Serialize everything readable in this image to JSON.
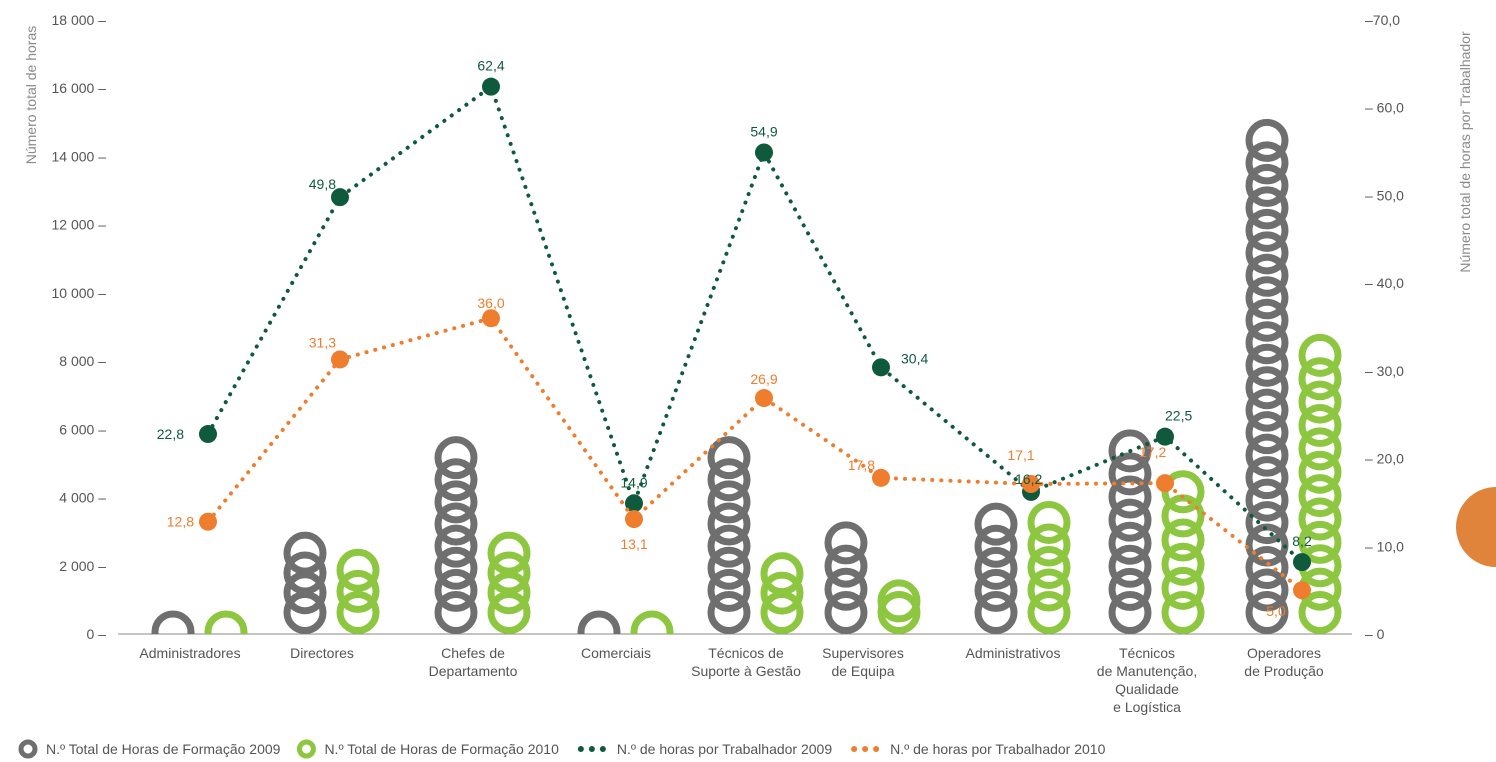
{
  "chart_data": {
    "type": "bar",
    "categories": [
      [
        "Administradores"
      ],
      [
        "Directores"
      ],
      [
        "Chefes de",
        "Departamento"
      ],
      [
        "Comerciais"
      ],
      [
        "Técnicos de",
        "Suporte à Gestão"
      ],
      [
        "Supervisores",
        "de Equipa"
      ],
      [
        "Administrativos"
      ],
      [
        "Técnicos",
        "de Manutenção,",
        "Qualidade",
        "e Logística"
      ],
      [
        "Operadores",
        "de Produção"
      ]
    ],
    "ylabel": "Número total de horas",
    "y2label": "Número total de horas por Trabalhador",
    "ylim": [
      0,
      18000
    ],
    "y2lim": [
      0,
      70
    ],
    "yticks": [
      "0 –",
      "2 000 –",
      "4 000 –",
      "6 000 –",
      "8 000 –",
      "10 000 –",
      "12 000 –",
      "14 000 –",
      "16 000 –",
      "18 000 –"
    ],
    "y2ticks": [
      "– 0",
      "– 10,0",
      "– 20,0",
      "– 30,0",
      "– 40,0",
      "– 50,0",
      "– 60,0",
      "–70,0"
    ],
    "series": [
      {
        "name": "N.º Total de Horas de Formação 2009",
        "kind": "bar",
        "color": "#6f6f6f",
        "values": [
          100,
          3000,
          5800,
          1150,
          5800,
          3300,
          3850,
          6000,
          15100
        ]
      },
      {
        "name": "N.º Total de Horas de Formação 2010",
        "kind": "bar",
        "color": "#8dc63f",
        "values": [
          -200,
          2500,
          3000,
          900,
          2400,
          1600,
          3900,
          4800,
          8800
        ]
      },
      {
        "name": "N.º de horas por Trabalhador 2009",
        "kind": "line",
        "axis": "right",
        "color": "#0f5a3c",
        "values": [
          22.8,
          49.8,
          62.4,
          14.9,
          54.9,
          30.4,
          16.2,
          22.5,
          8.2
        ],
        "labels": [
          "22,8",
          "49,8",
          "62,4",
          "14,9",
          "54,9",
          "30,4",
          "16,2",
          "22,5",
          "8,2"
        ]
      },
      {
        "name": "N.º de horas por Trabalhador 2010",
        "kind": "line",
        "axis": "right",
        "color": "#ee7d2d",
        "values": [
          12.8,
          31.3,
          36.0,
          13.1,
          26.9,
          17.8,
          17.1,
          17.2,
          5.0
        ],
        "labels": [
          "12,8",
          "31,3",
          "36,0",
          "13,1",
          "26,9",
          "17,8",
          "17,1",
          "17,2",
          "5,0"
        ]
      }
    ],
    "legend_position": "bottom-left",
    "grid": false
  }
}
